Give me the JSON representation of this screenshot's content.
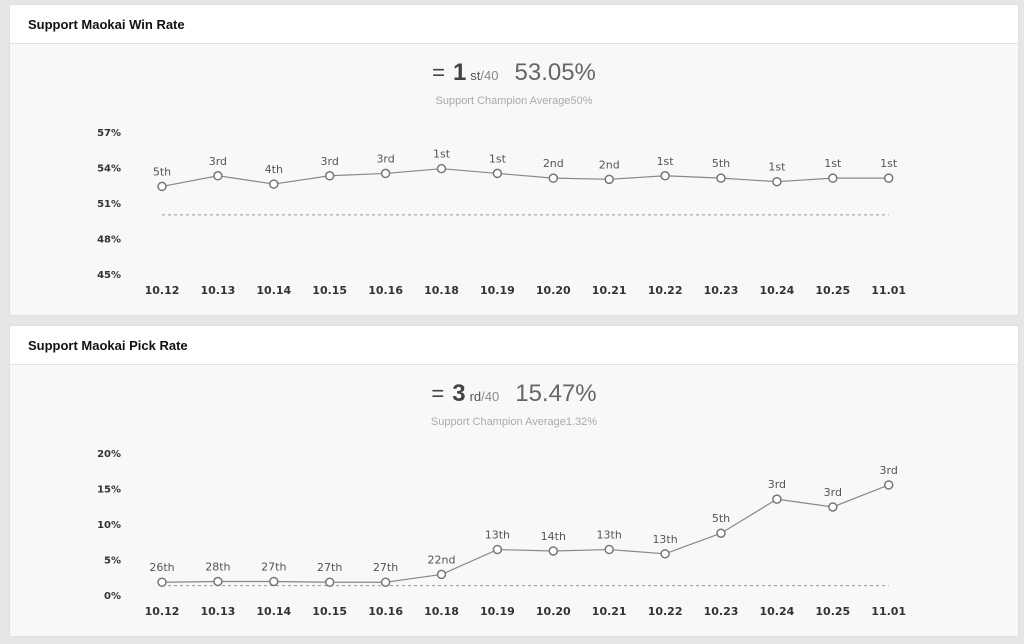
{
  "panels": [
    {
      "title": "Support Maokai Win Rate",
      "rank": "1",
      "rank_suffix": "st",
      "rank_total": "/40",
      "value": "53.05%",
      "average_label": "Support Champion Average",
      "average_value": "50%"
    },
    {
      "title": "Support Maokai Pick Rate",
      "rank": "3",
      "rank_suffix": "rd",
      "rank_total": "/40",
      "value": "15.47%",
      "average_label": "Support Champion Average",
      "average_value": "1.32%"
    }
  ],
  "chart_data": [
    {
      "type": "line",
      "title": "Support Maokai Win Rate",
      "x": [
        "10.12",
        "10.13",
        "10.14",
        "10.15",
        "10.16",
        "10.18",
        "10.19",
        "10.20",
        "10.21",
        "10.22",
        "10.23",
        "10.24",
        "10.25",
        "11.01"
      ],
      "series": [
        {
          "values": [
            52.4,
            53.3,
            52.6,
            53.3,
            53.5,
            53.9,
            53.5,
            53.1,
            53.0,
            53.3,
            53.1,
            52.8,
            53.1,
            53.1
          ],
          "labels": [
            "5th",
            "3rd",
            "4th",
            "3rd",
            "3rd",
            "1st",
            "1st",
            "2nd",
            "2nd",
            "1st",
            "5th",
            "1st",
            "1st",
            "1st"
          ]
        }
      ],
      "reference": 50,
      "ylim": [
        45,
        57
      ],
      "yticks": [
        "57%",
        "54%",
        "51%",
        "48%",
        "45%"
      ],
      "ytick_values": [
        57,
        54,
        51,
        48,
        45
      ],
      "grid": false,
      "colors": {
        "line": "#888888",
        "marker_fill": "#ffffff",
        "marker_stroke": "#777777",
        "reference": "#999999"
      }
    },
    {
      "type": "line",
      "title": "Support Maokai Pick Rate",
      "x": [
        "10.12",
        "10.13",
        "10.14",
        "10.15",
        "10.16",
        "10.18",
        "10.19",
        "10.20",
        "10.21",
        "10.22",
        "10.23",
        "10.24",
        "10.25",
        "11.01"
      ],
      "series": [
        {
          "values": [
            1.8,
            1.9,
            1.9,
            1.8,
            1.8,
            2.9,
            6.4,
            6.2,
            6.4,
            5.8,
            8.7,
            13.5,
            12.4,
            15.5
          ],
          "labels": [
            "26th",
            "28th",
            "27th",
            "27th",
            "27th",
            "22nd",
            "13th",
            "14th",
            "13th",
            "13th",
            "5th",
            "3rd",
            "3rd",
            "3rd"
          ]
        }
      ],
      "reference": 1.32,
      "ylim": [
        0,
        20
      ],
      "yticks": [
        "20%",
        "15%",
        "10%",
        "5%",
        "0%"
      ],
      "ytick_values": [
        20,
        15,
        10,
        5,
        0
      ],
      "grid": false,
      "colors": {
        "line": "#888888",
        "marker_fill": "#ffffff",
        "marker_stroke": "#777777",
        "reference": "#999999"
      }
    }
  ]
}
